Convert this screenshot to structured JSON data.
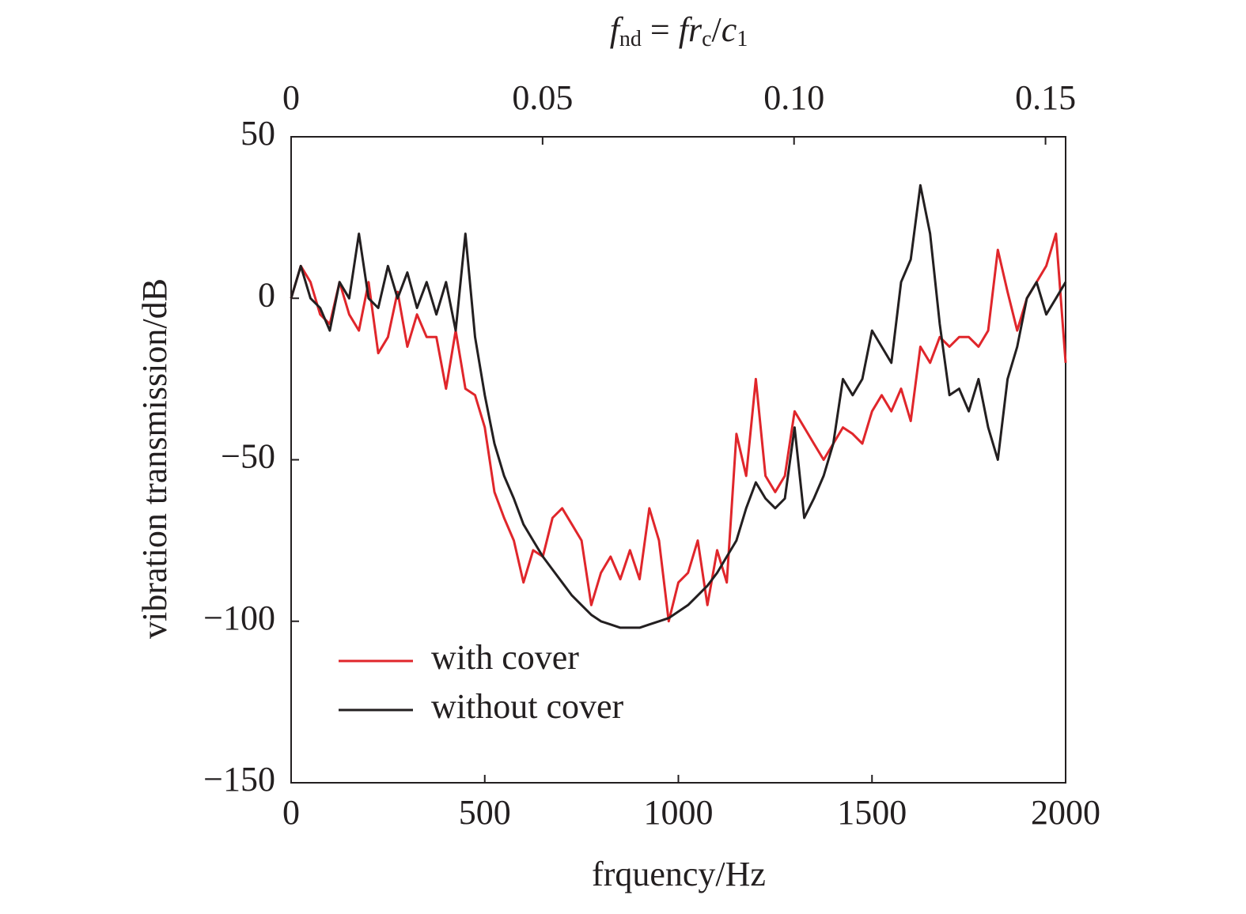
{
  "chart_data": {
    "type": "line",
    "x2label_parts": [
      "f",
      "nd",
      " = ",
      "fr",
      "c",
      "/",
      "c",
      "1"
    ],
    "xlabel": "frquency/Hz",
    "ylabel": "vibration transmission/dB",
    "xlim": [
      0,
      2000
    ],
    "xticks": [
      0,
      500,
      1000,
      1500,
      2000
    ],
    "x2lim": [
      0,
      0.154
    ],
    "x2ticks": [
      0,
      0.05,
      {
        "value": 0.1,
        "label": "0.10"
      },
      0.15
    ],
    "ylim": [
      -150,
      50
    ],
    "yticks": [
      50,
      0,
      {
        "value": -50,
        "label": "−50"
      },
      {
        "value": -100,
        "label": "−100"
      },
      {
        "value": -150,
        "label": "−150"
      }
    ],
    "legend": "lower left",
    "x": [
      0,
      25,
      50,
      75,
      100,
      125,
      150,
      175,
      200,
      225,
      250,
      275,
      300,
      325,
      350,
      375,
      400,
      425,
      450,
      475,
      500,
      525,
      550,
      575,
      600,
      625,
      650,
      675,
      700,
      725,
      750,
      775,
      800,
      825,
      850,
      875,
      900,
      925,
      950,
      975,
      1000,
      1025,
      1050,
      1075,
      1100,
      1125,
      1150,
      1175,
      1200,
      1225,
      1250,
      1275,
      1300,
      1325,
      1350,
      1375,
      1400,
      1425,
      1450,
      1475,
      1500,
      1525,
      1550,
      1575,
      1600,
      1625,
      1650,
      1675,
      1700,
      1725,
      1750,
      1775,
      1800,
      1825,
      1850,
      1875,
      1900,
      1925,
      1950,
      1975,
      2000
    ],
    "series": [
      {
        "name": "with cover",
        "color": "#e0262b",
        "values": [
          0,
          10,
          5,
          -5,
          -8,
          5,
          -5,
          -10,
          5,
          -17,
          -12,
          2,
          -15,
          -5,
          -12,
          -12,
          -28,
          -10,
          -28,
          -30,
          -40,
          -60,
          -68,
          -75,
          -88,
          -78,
          -80,
          -68,
          -65,
          -70,
          -75,
          -95,
          -85,
          -80,
          -87,
          -78,
          -87,
          -65,
          -75,
          -100,
          -88,
          -85,
          -75,
          -95,
          -78,
          -88,
          -42,
          -55,
          -25,
          -55,
          -60,
          -55,
          -35,
          -40,
          -45,
          -50,
          -45,
          -40,
          -42,
          -45,
          -35,
          -30,
          -35,
          -28,
          -38,
          -15,
          -20,
          -12,
          -15,
          -12,
          -12,
          -15,
          -10,
          15,
          2,
          -10,
          0,
          5,
          10,
          20,
          -20
        ]
      },
      {
        "name": "without cover",
        "color": "#231f20",
        "values": [
          0,
          10,
          0,
          -3,
          -10,
          5,
          0,
          20,
          0,
          -3,
          10,
          0,
          8,
          -3,
          5,
          -5,
          5,
          -10,
          20,
          -12,
          -30,
          -45,
          -55,
          -62,
          -70,
          -75,
          -80,
          -84,
          -88,
          -92,
          -95,
          -98,
          -100,
          -101,
          -102,
          -102,
          -102,
          -101,
          -100,
          -99,
          -97,
          -95,
          -92,
          -89,
          -85,
          -80,
          -75,
          -65,
          -57,
          -62,
          -65,
          -62,
          -40,
          -68,
          -62,
          -55,
          -45,
          -25,
          -30,
          -25,
          -10,
          -15,
          -20,
          5,
          12,
          35,
          20,
          -8,
          -30,
          -28,
          -35,
          -25,
          -40,
          -50,
          -25,
          -15,
          0,
          5,
          -5,
          0,
          5
        ]
      }
    ]
  }
}
